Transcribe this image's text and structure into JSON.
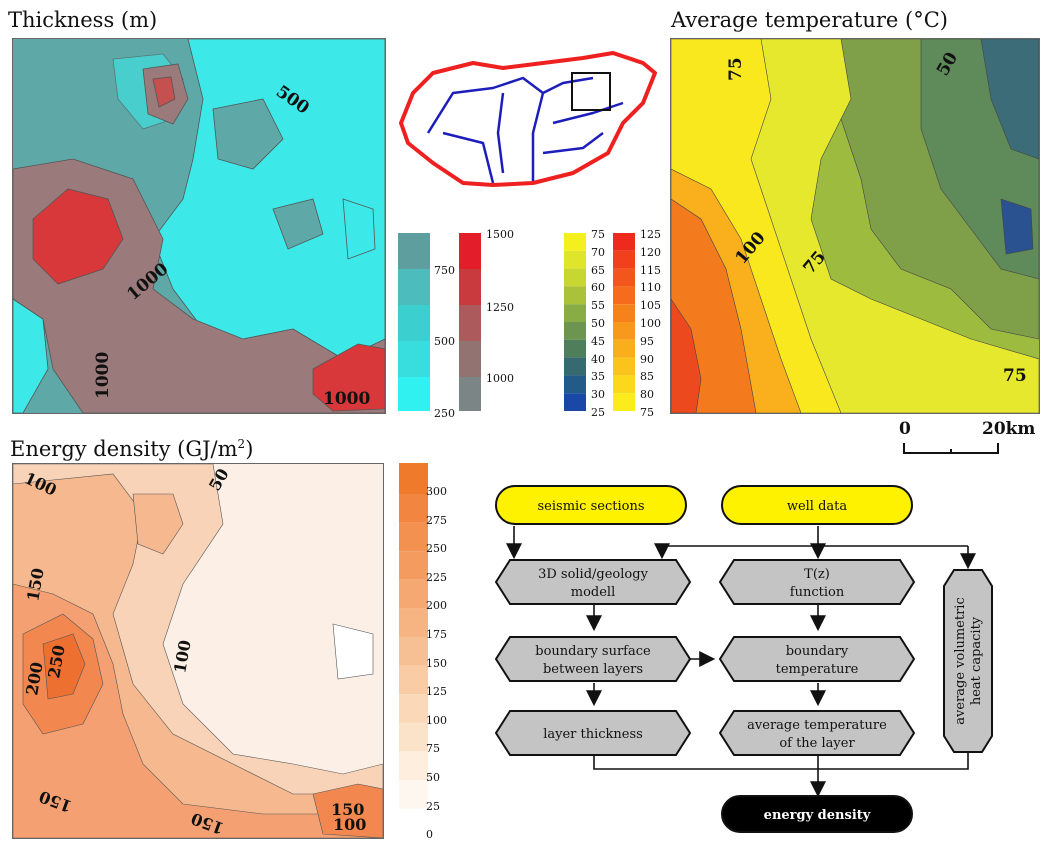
{
  "panels": {
    "thickness": {
      "title": "Thickness (m)",
      "contour_labels": [
        "500",
        "1000",
        "1000",
        "1000"
      ]
    },
    "temperature": {
      "title": "Average temperature (°C)",
      "contour_labels": [
        "75",
        "50",
        "100",
        "75",
        "75"
      ]
    },
    "energy": {
      "title_main": "Energy density (GJ/m",
      "title_sup": "2",
      "title_end": ")",
      "contour_labels": [
        "100",
        "50",
        "150",
        "100",
        "250",
        "200",
        "150",
        "150",
        "150",
        "100"
      ]
    }
  },
  "legends": {
    "thickness_cyan": [
      "750",
      "500",
      "250"
    ],
    "thickness_red": [
      "1500",
      "1250",
      "1000"
    ],
    "temp_blue": [
      "75",
      "70",
      "65",
      "60",
      "55",
      "50",
      "45",
      "40",
      "35",
      "30",
      "25"
    ],
    "temp_red": [
      "125",
      "120",
      "115",
      "110",
      "105",
      "100",
      "95",
      "90",
      "85",
      "80",
      "75"
    ],
    "energy": [
      "300",
      "275",
      "250",
      "225",
      "200",
      "175",
      "150",
      "125",
      "100",
      "75",
      "50",
      "25",
      "0"
    ]
  },
  "scale_bar": {
    "left": "0",
    "right": "20km"
  },
  "flowchart": {
    "seismic": "seismic sections",
    "well": "well data",
    "solid_1": "3D solid/geology",
    "solid_2": "modell",
    "tz_1": "T(z)",
    "tz_2": "function",
    "boundary_1": "boundary surface",
    "boundary_2": "between layers",
    "btemp_1": "boundary",
    "btemp_2": "temperature",
    "thick": "layer thickness",
    "avgt_1": "average temperature",
    "avgt_2": "of the layer",
    "heat_1": "average volumetric",
    "heat_2": "heat capacity",
    "energy": "energy density"
  },
  "colors": {
    "cyan": "#3ce8e8",
    "teal": "#5fa8a8",
    "grey_red": "#9a7a7a",
    "red": "#d9383a",
    "temp_yellow": "#f6f03a",
    "temp_orange": "#f28a20",
    "temp_blue": "#1c4f9a",
    "energy_orange": "#f07a2c",
    "flow_yellow": "#fff200",
    "flow_grey": "#c4c4c4",
    "flow_black": "#000000"
  }
}
